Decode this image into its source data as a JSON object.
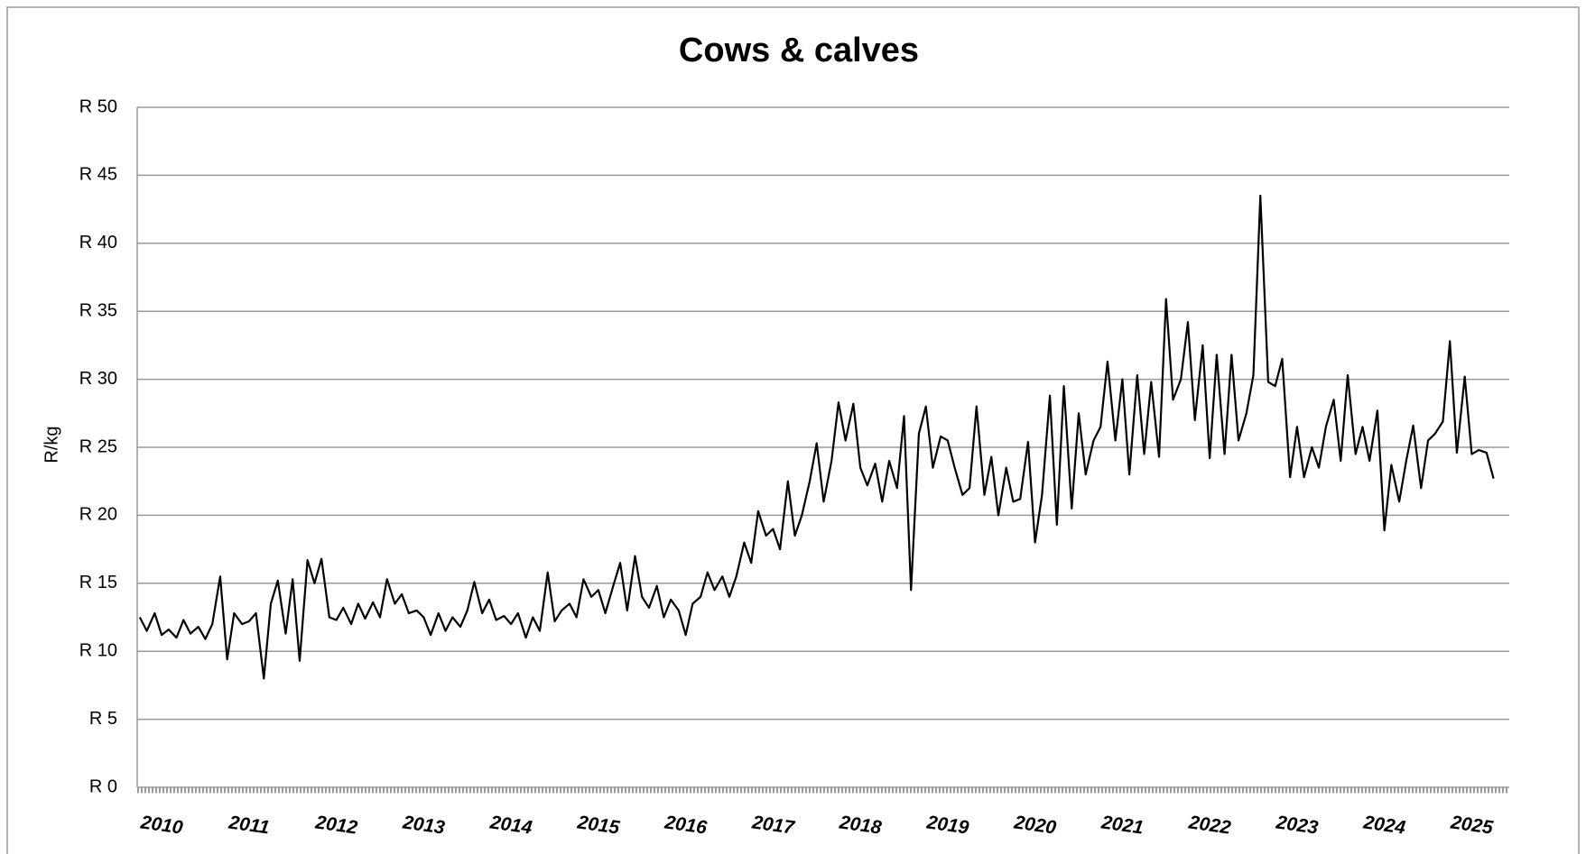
{
  "chart_data": {
    "type": "line",
    "title": "Cows & calves",
    "y_label": "R/kg",
    "color": "#000000",
    "grid": true,
    "xlim": [
      2009.72,
      2025.43
    ],
    "xticks": [
      2010,
      2011,
      2012,
      2013,
      2014,
      2015,
      2016,
      2017,
      2018,
      2019,
      2020,
      2021,
      2022,
      2023,
      2024,
      2025
    ],
    "ylim": [
      0,
      50
    ],
    "yticks": [
      {
        "value": 0,
        "label": "R 0"
      },
      {
        "value": 5,
        "label": "R 5"
      },
      {
        "value": 10,
        "label": "R 10"
      },
      {
        "value": 15,
        "label": "R 15"
      },
      {
        "value": 20,
        "label": "R 20"
      },
      {
        "value": 25,
        "label": "R 25"
      },
      {
        "value": 30,
        "label": "R 30"
      },
      {
        "value": 35,
        "label": "R 35"
      },
      {
        "value": 40,
        "label": "R 40"
      },
      {
        "value": 45,
        "label": "R 45"
      },
      {
        "value": 50,
        "label": "R 50"
      }
    ],
    "x": [
      2009.75,
      2009.83,
      2009.92,
      2010.0,
      2010.08,
      2010.17,
      2010.25,
      2010.33,
      2010.42,
      2010.5,
      2010.58,
      2010.67,
      2010.75,
      2010.83,
      2010.92,
      2011.0,
      2011.08,
      2011.17,
      2011.25,
      2011.33,
      2011.42,
      2011.5,
      2011.58,
      2011.67,
      2011.75,
      2011.83,
      2011.92,
      2012.0,
      2012.08,
      2012.17,
      2012.25,
      2012.33,
      2012.42,
      2012.5,
      2012.58,
      2012.67,
      2012.75,
      2012.83,
      2012.92,
      2013.0,
      2013.08,
      2013.17,
      2013.25,
      2013.33,
      2013.42,
      2013.5,
      2013.58,
      2013.67,
      2013.75,
      2013.83,
      2013.92,
      2014.0,
      2014.08,
      2014.17,
      2014.25,
      2014.33,
      2014.42,
      2014.5,
      2014.58,
      2014.67,
      2014.75,
      2014.83,
      2014.92,
      2015.0,
      2015.08,
      2015.17,
      2015.25,
      2015.33,
      2015.42,
      2015.5,
      2015.58,
      2015.67,
      2015.75,
      2015.83,
      2015.92,
      2016.0,
      2016.08,
      2016.17,
      2016.25,
      2016.33,
      2016.42,
      2016.5,
      2016.58,
      2016.67,
      2016.75,
      2016.83,
      2016.92,
      2017.0,
      2017.08,
      2017.17,
      2017.25,
      2017.33,
      2017.42,
      2017.5,
      2017.58,
      2017.67,
      2017.75,
      2017.83,
      2017.92,
      2018.0,
      2018.08,
      2018.17,
      2018.25,
      2018.33,
      2018.42,
      2018.5,
      2018.58,
      2018.67,
      2018.75,
      2018.83,
      2018.92,
      2019.0,
      2019.08,
      2019.17,
      2019.25,
      2019.33,
      2019.42,
      2019.5,
      2019.58,
      2019.67,
      2019.75,
      2019.83,
      2019.92,
      2020.0,
      2020.08,
      2020.17,
      2020.25,
      2020.33,
      2020.42,
      2020.5,
      2020.58,
      2020.67,
      2020.75,
      2020.83,
      2020.92,
      2021.0,
      2021.08,
      2021.17,
      2021.25,
      2021.33,
      2021.42,
      2021.5,
      2021.58,
      2021.67,
      2021.75,
      2021.83,
      2021.92,
      2022.0,
      2022.08,
      2022.17,
      2022.25,
      2022.33,
      2022.42,
      2022.5,
      2022.58,
      2022.67,
      2022.75,
      2022.83,
      2022.92,
      2023.0,
      2023.08,
      2023.17,
      2023.25,
      2023.33,
      2023.42,
      2023.5,
      2023.58,
      2023.67,
      2023.75,
      2023.83,
      2023.92,
      2024.0,
      2024.08,
      2024.17,
      2024.25,
      2024.33,
      2024.42,
      2024.5,
      2024.58,
      2024.67,
      2024.75,
      2024.83,
      2024.92,
      2025.0,
      2025.08,
      2025.17,
      2025.25
    ],
    "values": [
      12.5,
      11.5,
      12.8,
      11.2,
      11.6,
      11.0,
      12.3,
      11.3,
      11.8,
      10.9,
      12.0,
      15.5,
      9.4,
      12.8,
      12.0,
      12.2,
      12.8,
      8.0,
      13.5,
      15.2,
      11.3,
      15.3,
      9.3,
      16.7,
      15.0,
      16.8,
      12.5,
      12.3,
      13.2,
      12.0,
      13.5,
      12.4,
      13.6,
      12.5,
      15.3,
      13.5,
      14.2,
      12.8,
      13.0,
      12.5,
      11.2,
      12.8,
      11.5,
      12.5,
      11.8,
      13.0,
      15.1,
      12.8,
      13.8,
      12.3,
      12.6,
      12.0,
      12.8,
      11.0,
      12.5,
      11.5,
      15.8,
      12.2,
      13.0,
      13.5,
      12.5,
      15.3,
      14.0,
      14.5,
      12.8,
      14.8,
      16.5,
      13.0,
      17.0,
      14.0,
      13.2,
      14.8,
      12.5,
      13.8,
      13.0,
      11.2,
      13.5,
      14.0,
      15.8,
      14.5,
      15.5,
      14.0,
      15.5,
      18.0,
      16.5,
      20.3,
      18.5,
      19.0,
      17.5,
      22.5,
      18.5,
      20.0,
      22.5,
      25.3,
      21.0,
      24.0,
      28.3,
      25.5,
      28.2,
      23.5,
      22.2,
      23.8,
      21.0,
      24.0,
      22.0,
      27.3,
      14.5,
      26.0,
      28.0,
      23.5,
      25.8,
      25.5,
      23.5,
      21.5,
      22.0,
      28.0,
      21.5,
      24.3,
      20.0,
      23.5,
      21.0,
      21.2,
      25.4,
      18.0,
      21.5,
      28.8,
      19.3,
      29.5,
      20.5,
      27.5,
      23.0,
      25.5,
      26.5,
      31.3,
      25.5,
      30.0,
      23.0,
      30.3,
      24.5,
      29.8,
      24.3,
      35.9,
      28.5,
      30.0,
      34.2,
      27.0,
      32.5,
      24.2,
      31.8,
      24.5,
      31.8,
      25.5,
      27.5,
      30.3,
      43.5,
      29.8,
      29.5,
      31.5,
      22.8,
      26.5,
      22.8,
      25.0,
      23.5,
      26.5,
      28.5,
      24.0,
      30.3,
      24.5,
      26.5,
      24.0,
      27.7,
      18.9,
      23.7,
      21.0,
      24.0,
      26.6,
      22.0,
      25.5,
      26.0,
      26.9,
      32.8,
      24.6,
      30.2,
      24.5,
      24.8,
      24.6,
      22.7
    ]
  }
}
